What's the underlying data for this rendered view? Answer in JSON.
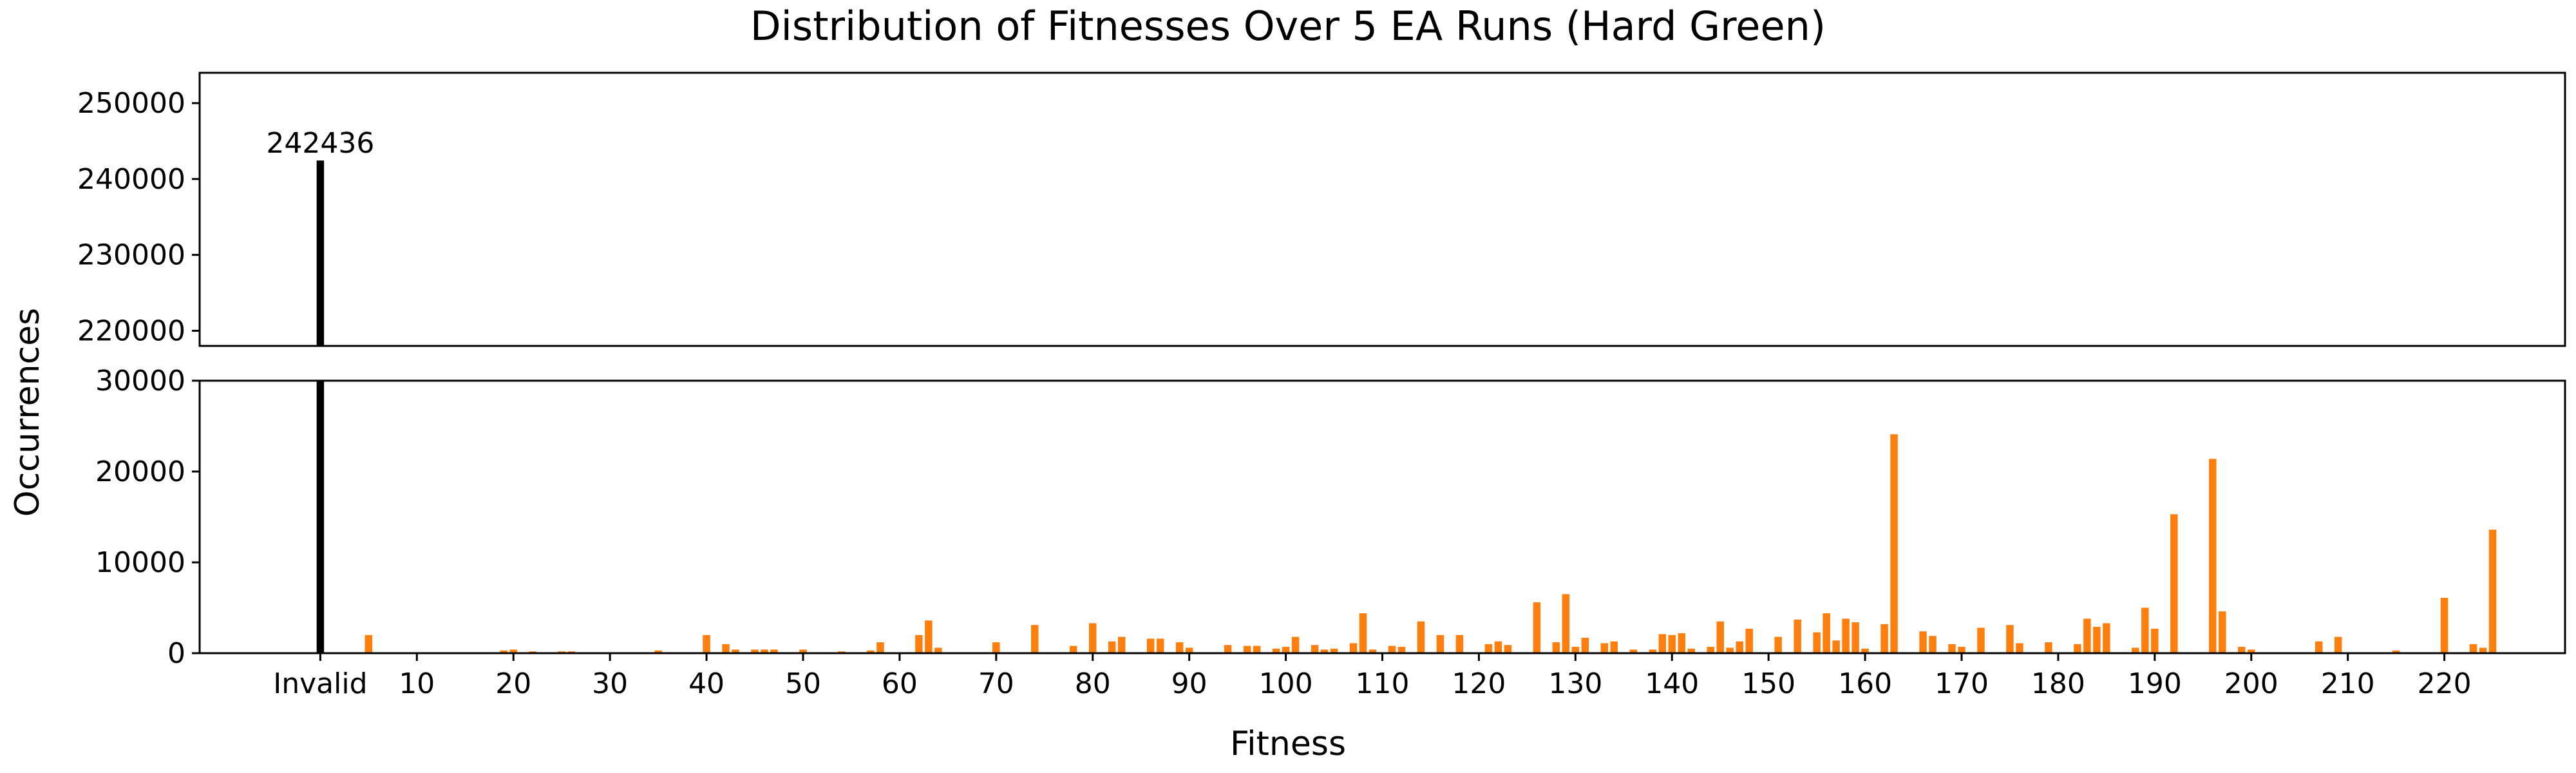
{
  "chart_data": {
    "type": "bar",
    "title": "Distribution of Fitnesses Over 5 EA Runs (Hard Green)",
    "xlabel": "Fitness",
    "ylabel": "Occurrences",
    "broken_y_axis": true,
    "upper_ylim": [
      218000,
      254000
    ],
    "upper_yticks": [
      "220000",
      "230000",
      "240000",
      "250000"
    ],
    "lower_ylim": [
      0,
      30000
    ],
    "lower_yticks": [
      "0",
      "10000",
      "20000",
      "30000"
    ],
    "xlim": [
      -12.5,
      232.5
    ],
    "xticks": [
      {
        "value": 0,
        "label": "Invalid"
      },
      {
        "value": 10,
        "label": "10"
      },
      {
        "value": 20,
        "label": "20"
      },
      {
        "value": 30,
        "label": "30"
      },
      {
        "value": 40,
        "label": "40"
      },
      {
        "value": 50,
        "label": "50"
      },
      {
        "value": 60,
        "label": "60"
      },
      {
        "value": 70,
        "label": "70"
      },
      {
        "value": 80,
        "label": "80"
      },
      {
        "value": 90,
        "label": "90"
      },
      {
        "value": 100,
        "label": "100"
      },
      {
        "value": 110,
        "label": "110"
      },
      {
        "value": 120,
        "label": "120"
      },
      {
        "value": 130,
        "label": "130"
      },
      {
        "value": 140,
        "label": "140"
      },
      {
        "value": 150,
        "label": "150"
      },
      {
        "value": 160,
        "label": "160"
      },
      {
        "value": 170,
        "label": "170"
      },
      {
        "value": 180,
        "label": "180"
      },
      {
        "value": 190,
        "label": "190"
      },
      {
        "value": 200,
        "label": "200"
      },
      {
        "value": 210,
        "label": "210"
      },
      {
        "value": 220,
        "label": "220"
      }
    ],
    "grid": false,
    "invalid_bar": {
      "label": "Invalid",
      "value": 242436,
      "value_label": "242436",
      "color": "#000000"
    },
    "bar_color": "#ff7f0e",
    "series": [
      {
        "x": [
          5,
          19,
          20,
          22,
          25,
          26,
          35,
          40,
          42,
          43,
          45,
          46,
          47,
          50,
          54,
          57,
          58,
          62,
          63,
          64,
          70,
          74,
          78,
          80,
          82,
          83,
          86,
          87,
          89,
          90,
          94,
          96,
          97,
          99,
          100,
          101,
          103,
          104,
          105,
          107,
          108,
          109,
          111,
          112,
          114,
          116,
          118,
          121,
          122,
          123,
          126,
          128,
          129,
          130,
          131,
          133,
          134,
          136,
          138,
          139,
          140,
          141,
          142,
          144,
          145,
          146,
          147,
          148,
          151,
          153,
          155,
          156,
          157,
          158,
          159,
          160,
          162,
          163,
          166,
          167,
          169,
          170,
          172,
          175,
          176,
          179,
          182,
          183,
          184,
          185,
          188,
          189,
          190,
          192,
          196,
          197,
          199,
          200,
          207,
          209,
          215,
          220,
          223,
          224,
          225
        ],
        "values": [
          2000,
          300,
          400,
          200,
          200,
          200,
          300,
          2000,
          1000,
          400,
          400,
          400,
          400,
          400,
          200,
          300,
          1200,
          2000,
          3600,
          600,
          1200,
          3100,
          800,
          3300,
          1300,
          1800,
          1600,
          1600,
          1200,
          600,
          900,
          800,
          800,
          500,
          700,
          1800,
          900,
          400,
          500,
          1100,
          4400,
          400,
          800,
          700,
          3500,
          2000,
          2000,
          1000,
          1300,
          900,
          5600,
          1200,
          6500,
          700,
          1700,
          1100,
          1300,
          400,
          400,
          2100,
          2000,
          2200,
          500,
          700,
          3500,
          600,
          1300,
          2700,
          1800,
          3700,
          2300,
          4400,
          1400,
          3800,
          3400,
          500,
          3200,
          24100,
          2400,
          1900,
          1000,
          700,
          2800,
          3100,
          1100,
          1200,
          1000,
          3800,
          2900,
          3300,
          600,
          5000,
          2700,
          15300,
          21400,
          4600,
          700,
          400,
          1300,
          1800,
          300,
          6100,
          1000,
          600,
          13600
        ]
      }
    ]
  }
}
